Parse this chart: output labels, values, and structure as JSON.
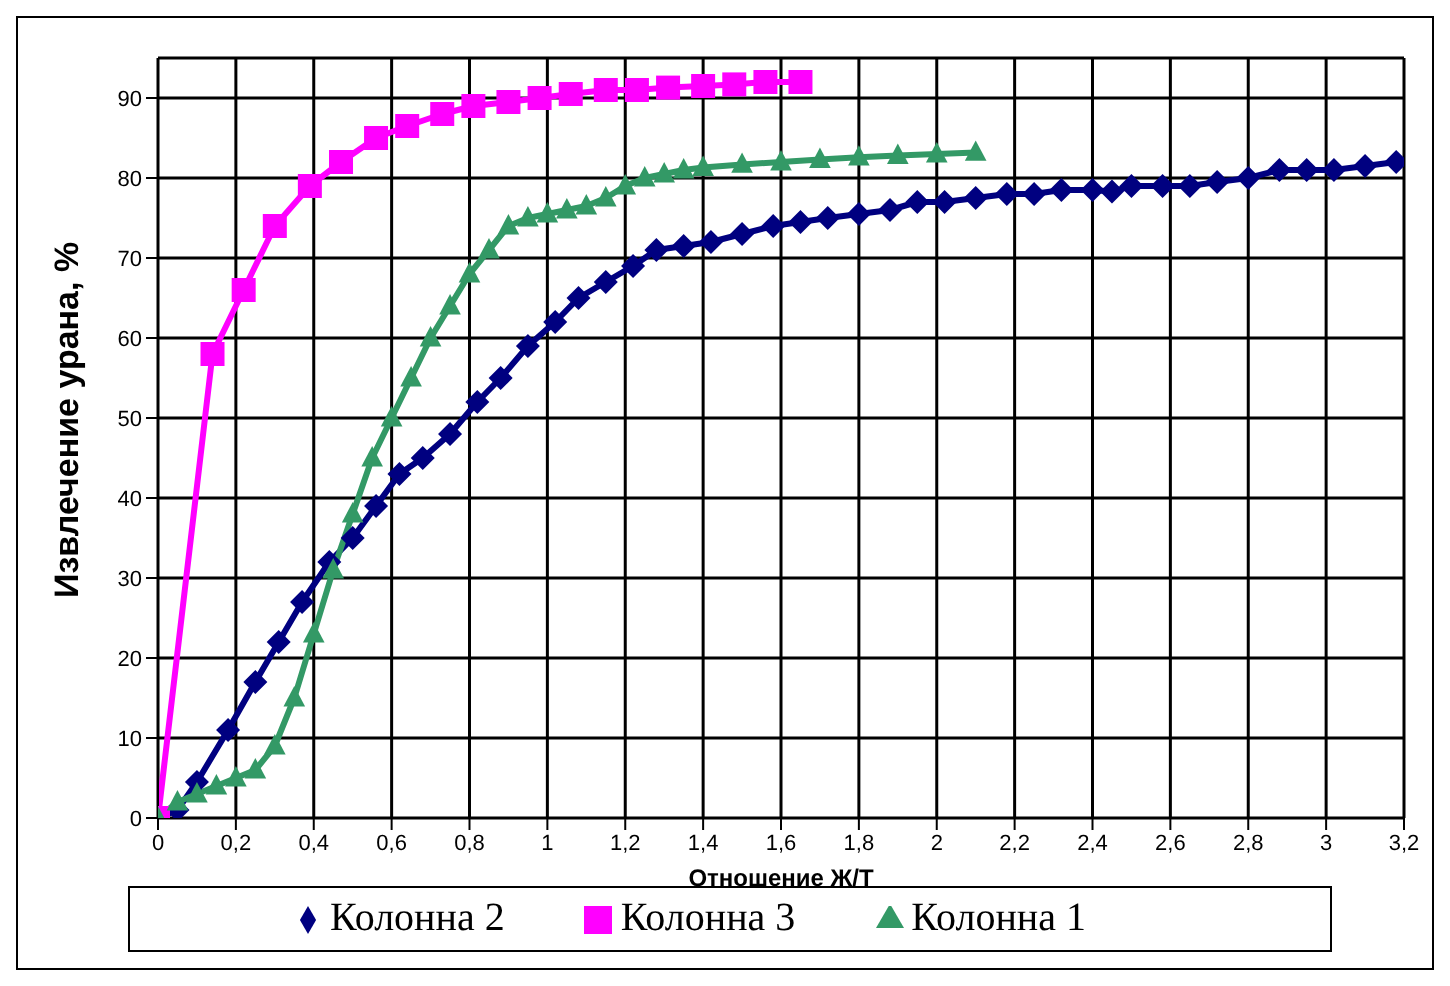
{
  "chart_data": {
    "type": "line",
    "xlabel": "Отношение Ж/Т",
    "ylabel": "Извлечение урана, %",
    "xlim": [
      0,
      3.2
    ],
    "xticks": [
      0,
      {
        "value": 0.2,
        "label": "0,2"
      },
      {
        "value": 0.4,
        "label": "0,4"
      },
      {
        "value": 0.6,
        "label": "0,6"
      },
      {
        "value": 0.8,
        "label": "0,8"
      },
      1,
      {
        "value": 1.2,
        "label": "1,2"
      },
      {
        "value": 1.4,
        "label": "1,4"
      },
      {
        "value": 1.6,
        "label": "1,6"
      },
      {
        "value": 1.8,
        "label": "1,8"
      },
      2,
      {
        "value": 2.2,
        "label": "2,2"
      },
      {
        "value": 2.4,
        "label": "2,4"
      },
      {
        "value": 2.6,
        "label": "2,6"
      },
      {
        "value": 2.8,
        "label": "2,8"
      },
      3,
      {
        "value": 3.2,
        "label": "3,2"
      }
    ],
    "ylim": [
      0,
      95
    ],
    "yticks": [
      0,
      10,
      20,
      30,
      40,
      50,
      60,
      70,
      80,
      90
    ],
    "grid": true,
    "legend": "bottom",
    "line_style": "solid",
    "series": [
      {
        "name": "Колонна 2",
        "color": "#000080",
        "marker": "diamond",
        "x": [
          0,
          0.05,
          0.1,
          0.18,
          0.25,
          0.31,
          0.37,
          0.44,
          0.5,
          0.56,
          0.62,
          0.68,
          0.75,
          0.82,
          0.88,
          0.95,
          1.02,
          1.08,
          1.15,
          1.22,
          1.28,
          1.35,
          1.42,
          1.5,
          1.58,
          1.65,
          1.72,
          1.8,
          1.88,
          1.95,
          2.02,
          2.1,
          2.18,
          2.25,
          2.32,
          2.4,
          2.45,
          2.5,
          2.58,
          2.65,
          2.72,
          2.8,
          2.88,
          2.95,
          3.02,
          3.1,
          3.18
        ],
        "values": [
          0,
          1,
          4.5,
          11,
          17,
          22,
          27,
          32,
          35,
          39,
          43,
          45,
          48,
          52,
          55,
          59,
          62,
          65,
          67,
          69,
          71,
          71.5,
          72,
          73,
          74,
          74.5,
          75,
          75.5,
          76,
          77,
          77,
          77.5,
          78,
          78,
          78.5,
          78.5,
          78.3,
          79,
          79,
          79,
          79.5,
          80,
          81,
          81,
          81,
          81.5,
          82
        ]
      },
      {
        "name": "Колонна 3",
        "color": "#ff00ff",
        "marker": "square",
        "x": [
          0,
          0.14,
          0.22,
          0.3,
          0.39,
          0.47,
          0.56,
          0.64,
          0.73,
          0.81,
          0.9,
          0.98,
          1.06,
          1.15,
          1.23,
          1.31,
          1.4,
          1.48,
          1.56,
          1.65
        ],
        "values": [
          0,
          58,
          66,
          74,
          79,
          82,
          85,
          86.5,
          88,
          89,
          89.5,
          90,
          90.5,
          91,
          91,
          91.3,
          91.5,
          91.7,
          92,
          92
        ]
      },
      {
        "name": "Колонна 1",
        "color": "#339966",
        "marker": "triangle",
        "x": [
          0,
          0.05,
          0.1,
          0.15,
          0.2,
          0.25,
          0.3,
          0.35,
          0.4,
          0.45,
          0.5,
          0.55,
          0.6,
          0.65,
          0.7,
          0.75,
          0.8,
          0.85,
          0.9,
          0.95,
          1.0,
          1.05,
          1.1,
          1.15,
          1.2,
          1.25,
          1.3,
          1.35,
          1.4,
          1.5,
          1.6,
          1.7,
          1.8,
          1.9,
          2.0,
          2.1
        ],
        "values": [
          0,
          2,
          3,
          4,
          5,
          6,
          9,
          15,
          23,
          31,
          38,
          45,
          50,
          55,
          60,
          64,
          68,
          71,
          74,
          75,
          75.5,
          76,
          76.5,
          77.5,
          79,
          80,
          80.5,
          81,
          81.3,
          81.7,
          82,
          82.3,
          82.6,
          82.8,
          83,
          83.2
        ]
      }
    ]
  }
}
